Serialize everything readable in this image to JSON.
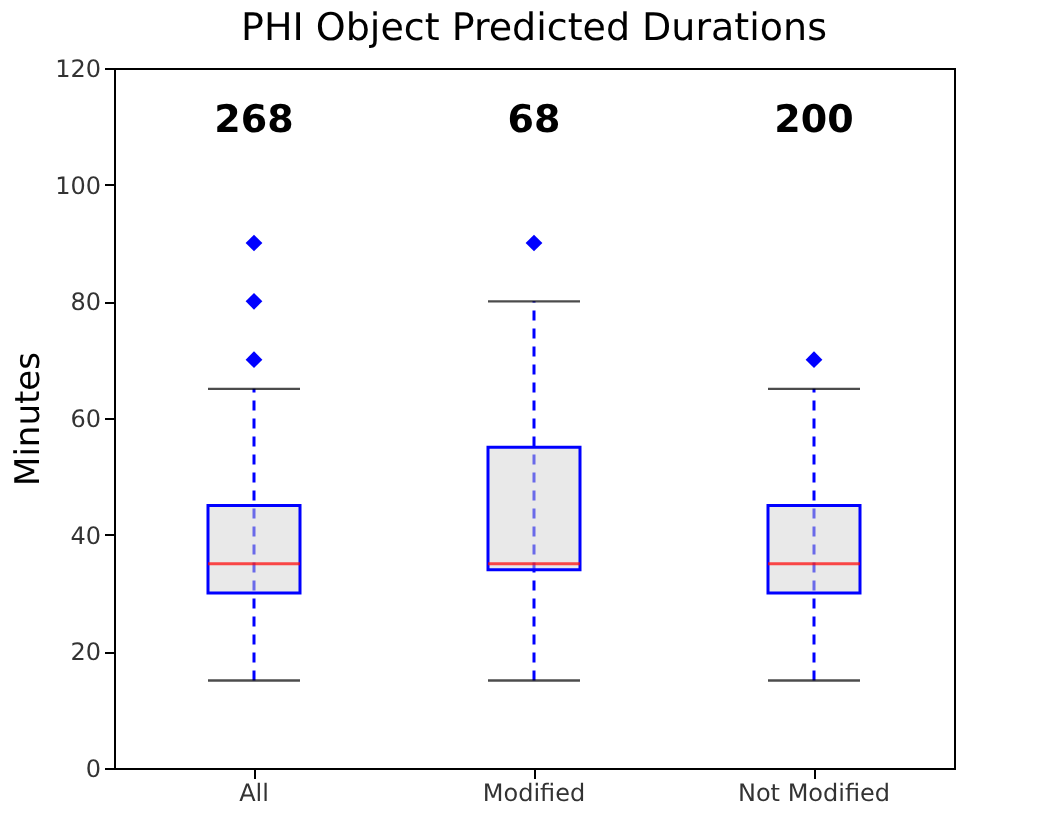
{
  "chart_data": {
    "type": "box",
    "title": "PHI Object Predicted Durations",
    "ylabel": "Minutes",
    "categories": [
      "All",
      "Modified",
      "Not Modified"
    ],
    "series": [
      {
        "color": "#0000ff",
        "boxes": [
          {
            "low": 15,
            "q1": 30,
            "median": 35,
            "q3": 45,
            "high": 65,
            "outliers": [
              70,
              80,
              90
            ]
          },
          {
            "low": 15,
            "q1": 34,
            "median": 35,
            "q3": 55,
            "high": 80,
            "outliers": [
              90
            ]
          },
          {
            "low": 15,
            "q1": 30,
            "median": 35,
            "q3": 45,
            "high": 65,
            "outliers": [
              70
            ]
          }
        ]
      }
    ],
    "ylim": [
      0,
      120
    ],
    "yticks": [
      0,
      20,
      40,
      60,
      80,
      100,
      120
    ],
    "grid": false,
    "marker": "diamond",
    "line_style": "dashed",
    "annotations": [
      "268",
      "68",
      "200"
    ]
  }
}
